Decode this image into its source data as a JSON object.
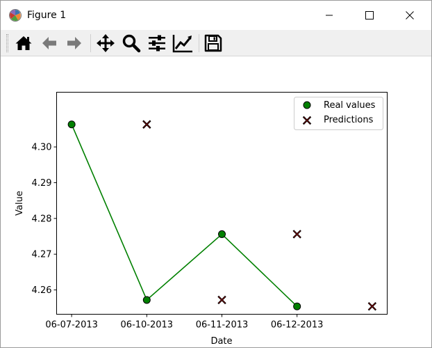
{
  "window": {
    "title": "Figure 1",
    "icon": "matplotlib-icon",
    "controls": [
      "minimize-icon",
      "maximize-icon",
      "close-icon"
    ]
  },
  "toolbar": {
    "buttons": [
      "home-icon",
      "back-arrow-icon",
      "forward-arrow-icon",
      "pan-icon",
      "zoom-icon",
      "subplots-config-icon",
      "edit-axis-icon",
      "save-icon"
    ]
  },
  "chart_data": {
    "type": "scatter",
    "title": "",
    "xlabel": "Date",
    "ylabel": "Value",
    "categories": [
      "06-07-2013",
      "06-10-2013",
      "06-11-2013",
      "06-12-2013"
    ],
    "xlim": [
      -0.2,
      4.2
    ],
    "ylim": [
      4.2532,
      4.3153
    ],
    "yticks": [
      4.26,
      4.27,
      4.28,
      4.29,
      4.3
    ],
    "ytick_labels": [
      "4.26",
      "4.27",
      "4.28",
      "4.29",
      "4.30"
    ],
    "grid": false,
    "legend_position": "top-right",
    "series": [
      {
        "name": "Real values",
        "marker": "circle",
        "line": true,
        "color": "#008000",
        "x": [
          0,
          1,
          2,
          3
        ],
        "y": [
          4.3063,
          4.2572,
          4.2756,
          4.2554
        ]
      },
      {
        "name": "Predictions",
        "marker": "x",
        "line": false,
        "color": "#ff0000",
        "x": [
          1,
          2,
          3,
          4
        ],
        "y": [
          4.3063,
          4.2572,
          4.2756,
          4.2554
        ]
      }
    ]
  }
}
